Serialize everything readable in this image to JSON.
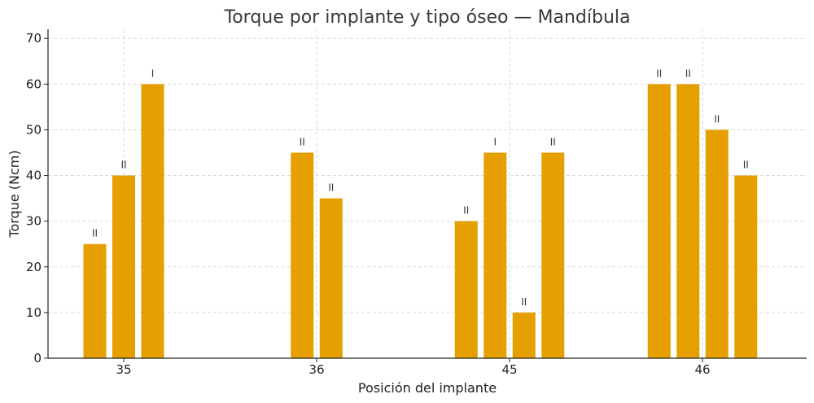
{
  "chart_data": {
    "type": "bar",
    "title": "Torque por implante y tipo óseo — Mandíbula",
    "xlabel": "Posición del implante",
    "ylabel": "Torque (Ncm)",
    "ylim": [
      0,
      72
    ],
    "yticks": [
      0,
      10,
      20,
      30,
      40,
      50,
      60,
      70
    ],
    "grid": true,
    "bar_color": "#E69F00",
    "categories": [
      "35",
      "36",
      "45",
      "46"
    ],
    "groups": [
      {
        "category": "35",
        "bars": [
          {
            "value": 25,
            "label": "II"
          },
          {
            "value": 40,
            "label": "II"
          },
          {
            "value": 60,
            "label": "I"
          }
        ]
      },
      {
        "category": "36",
        "bars": [
          {
            "value": 45,
            "label": "II"
          },
          {
            "value": 35,
            "label": "II"
          }
        ]
      },
      {
        "category": "45",
        "bars": [
          {
            "value": 30,
            "label": "II"
          },
          {
            "value": 45,
            "label": "I"
          },
          {
            "value": 10,
            "label": "II"
          },
          {
            "value": 45,
            "label": "II"
          }
        ]
      },
      {
        "category": "46",
        "bars": [
          {
            "value": 60,
            "label": "II"
          },
          {
            "value": 60,
            "label": "II"
          },
          {
            "value": 50,
            "label": "II"
          },
          {
            "value": 40,
            "label": "II"
          }
        ]
      }
    ]
  }
}
